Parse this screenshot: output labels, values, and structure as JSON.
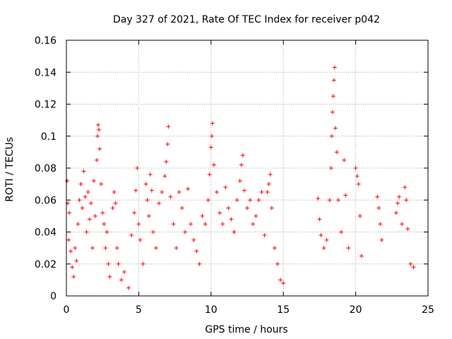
{
  "chart_data": {
    "type": "scatter",
    "title": "Day 327 of 2021, Rate Of TEC Index for receiver p042",
    "xlabel": "GPS time / hours",
    "ylabel": "ROTI / TECUs",
    "xlim": [
      0,
      25
    ],
    "ylim": [
      0,
      0.16
    ],
    "xticks": [
      "0",
      "5",
      "10",
      "15",
      "20",
      "25"
    ],
    "yticks": [
      "0",
      "0.02",
      "0.04",
      "0.06",
      "0.08",
      "0.1",
      "0.12",
      "0.14",
      "0.16"
    ],
    "grid": true,
    "marker": "+",
    "color": "#ff0000",
    "series": [
      {
        "points": [
          [
            0.05,
            0.072
          ],
          [
            0.1,
            0.058
          ],
          [
            0.15,
            0.035
          ],
          [
            0.2,
            0.052
          ],
          [
            0.3,
            0.028
          ],
          [
            0.4,
            0.018
          ],
          [
            0.5,
            0.012
          ],
          [
            0.6,
            0.03
          ],
          [
            0.7,
            0.022
          ],
          [
            0.8,
            0.045
          ],
          [
            0.9,
            0.06
          ],
          [
            1.0,
            0.07
          ],
          [
            1.1,
            0.055
          ],
          [
            1.2,
            0.078
          ],
          [
            1.3,
            0.062
          ],
          [
            1.4,
            0.04
          ],
          [
            1.5,
            0.065
          ],
          [
            1.6,
            0.048
          ],
          [
            1.7,
            0.058
          ],
          [
            1.8,
            0.03
          ],
          [
            1.9,
            0.072
          ],
          [
            2.0,
            0.05
          ],
          [
            2.1,
            0.085
          ],
          [
            2.15,
            0.1
          ],
          [
            2.2,
            0.107
          ],
          [
            2.25,
            0.104
          ],
          [
            2.3,
            0.092
          ],
          [
            2.4,
            0.07
          ],
          [
            2.5,
            0.052
          ],
          [
            2.6,
            0.045
          ],
          [
            2.7,
            0.03
          ],
          [
            2.8,
            0.04
          ],
          [
            2.9,
            0.02
          ],
          [
            3.0,
            0.012
          ],
          [
            3.2,
            0.055
          ],
          [
            3.3,
            0.065
          ],
          [
            3.4,
            0.058
          ],
          [
            3.5,
            0.03
          ],
          [
            3.6,
            0.02
          ],
          [
            3.8,
            0.01
          ],
          [
            4.0,
            0.015
          ],
          [
            4.3,
            0.005
          ],
          [
            4.5,
            0.038
          ],
          [
            4.7,
            0.052
          ],
          [
            4.8,
            0.066
          ],
          [
            4.9,
            0.08
          ],
          [
            5.0,
            0.045
          ],
          [
            5.1,
            0.035
          ],
          [
            5.3,
            0.02
          ],
          [
            5.5,
            0.07
          ],
          [
            5.6,
            0.06
          ],
          [
            5.7,
            0.05
          ],
          [
            5.8,
            0.076
          ],
          [
            5.9,
            0.066
          ],
          [
            6.0,
            0.04
          ],
          [
            6.2,
            0.03
          ],
          [
            6.4,
            0.058
          ],
          [
            6.6,
            0.065
          ],
          [
            6.8,
            0.075
          ],
          [
            6.9,
            0.084
          ],
          [
            7.0,
            0.095
          ],
          [
            7.05,
            0.106
          ],
          [
            7.2,
            0.062
          ],
          [
            7.4,
            0.045
          ],
          [
            7.6,
            0.03
          ],
          [
            7.8,
            0.065
          ],
          [
            8.0,
            0.055
          ],
          [
            8.2,
            0.04
          ],
          [
            8.4,
            0.067
          ],
          [
            8.6,
            0.045
          ],
          [
            8.8,
            0.035
          ],
          [
            9.0,
            0.028
          ],
          [
            9.2,
            0.02
          ],
          [
            9.4,
            0.05
          ],
          [
            9.6,
            0.045
          ],
          [
            9.8,
            0.06
          ],
          [
            9.9,
            0.076
          ],
          [
            10.0,
            0.093
          ],
          [
            10.05,
            0.1
          ],
          [
            10.1,
            0.108
          ],
          [
            10.2,
            0.082
          ],
          [
            10.4,
            0.065
          ],
          [
            10.6,
            0.052
          ],
          [
            10.8,
            0.045
          ],
          [
            11.0,
            0.068
          ],
          [
            11.2,
            0.055
          ],
          [
            11.4,
            0.048
          ],
          [
            11.6,
            0.04
          ],
          [
            11.8,
            0.06
          ],
          [
            12.0,
            0.072
          ],
          [
            12.1,
            0.082
          ],
          [
            12.2,
            0.088
          ],
          [
            12.3,
            0.066
          ],
          [
            12.5,
            0.055
          ],
          [
            12.7,
            0.06
          ],
          [
            12.9,
            0.045
          ],
          [
            13.1,
            0.05
          ],
          [
            13.3,
            0.06
          ],
          [
            13.5,
            0.065
          ],
          [
            13.7,
            0.038
          ],
          [
            13.9,
            0.065
          ],
          [
            14.0,
            0.07
          ],
          [
            14.1,
            0.076
          ],
          [
            14.2,
            0.055
          ],
          [
            14.4,
            0.03
          ],
          [
            14.6,
            0.02
          ],
          [
            14.8,
            0.01
          ],
          [
            15.0,
            0.008
          ],
          [
            17.4,
            0.061
          ],
          [
            17.5,
            0.048
          ],
          [
            17.6,
            0.038
          ],
          [
            17.8,
            0.03
          ],
          [
            18.0,
            0.035
          ],
          [
            18.2,
            0.06
          ],
          [
            18.3,
            0.08
          ],
          [
            18.35,
            0.1
          ],
          [
            18.4,
            0.115
          ],
          [
            18.45,
            0.125
          ],
          [
            18.5,
            0.135
          ],
          [
            18.55,
            0.143
          ],
          [
            18.6,
            0.105
          ],
          [
            18.7,
            0.09
          ],
          [
            18.8,
            0.06
          ],
          [
            19.0,
            0.04
          ],
          [
            19.2,
            0.085
          ],
          [
            19.3,
            0.063
          ],
          [
            19.5,
            0.03
          ],
          [
            20.0,
            0.08
          ],
          [
            20.1,
            0.075
          ],
          [
            20.2,
            0.07
          ],
          [
            20.3,
            0.05
          ],
          [
            20.4,
            0.025
          ],
          [
            21.5,
            0.062
          ],
          [
            21.6,
            0.055
          ],
          [
            21.7,
            0.045
          ],
          [
            21.8,
            0.035
          ],
          [
            22.8,
            0.052
          ],
          [
            22.9,
            0.058
          ],
          [
            23.0,
            0.062
          ],
          [
            23.2,
            0.045
          ],
          [
            23.4,
            0.068
          ],
          [
            23.5,
            0.06
          ],
          [
            23.6,
            0.042
          ],
          [
            23.8,
            0.02
          ],
          [
            24.0,
            0.018
          ]
        ]
      }
    ]
  }
}
